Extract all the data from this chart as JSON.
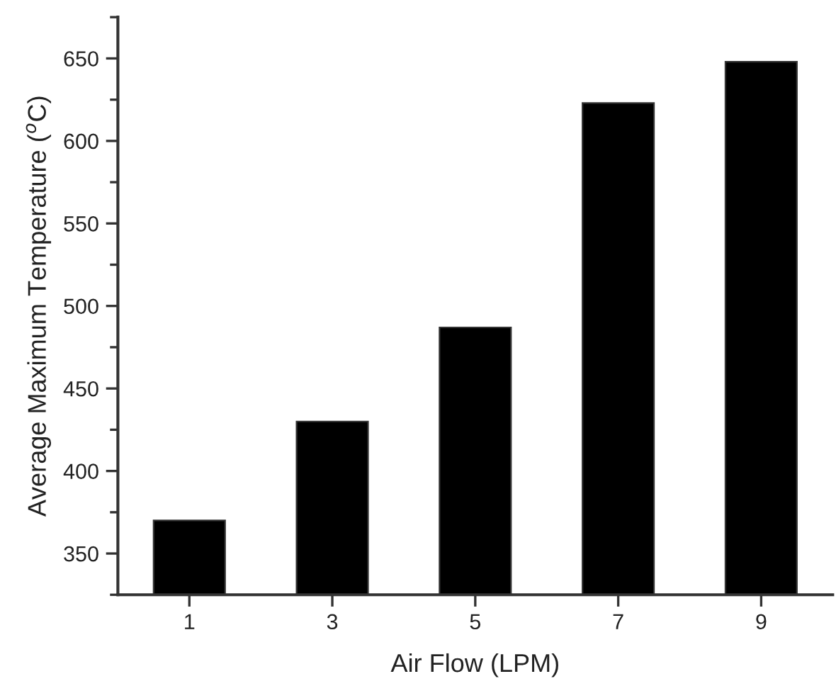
{
  "chart_data": {
    "type": "bar",
    "xlabel": "Air Flow (LPM)",
    "ylabel": "Average Maximum Temperature ($^{o}$C)",
    "x": [
      1,
      3,
      5,
      7,
      9
    ],
    "values": [
      370,
      430,
      487,
      623,
      648
    ],
    "color": "#000000",
    "xlim": [
      0,
      10
    ],
    "xticks": [
      1,
      3,
      5,
      7,
      9
    ],
    "ylim": [
      325,
      675
    ],
    "yticks": [
      350,
      400,
      450,
      500,
      550,
      600,
      650
    ],
    "grid": false,
    "legend": false
  }
}
